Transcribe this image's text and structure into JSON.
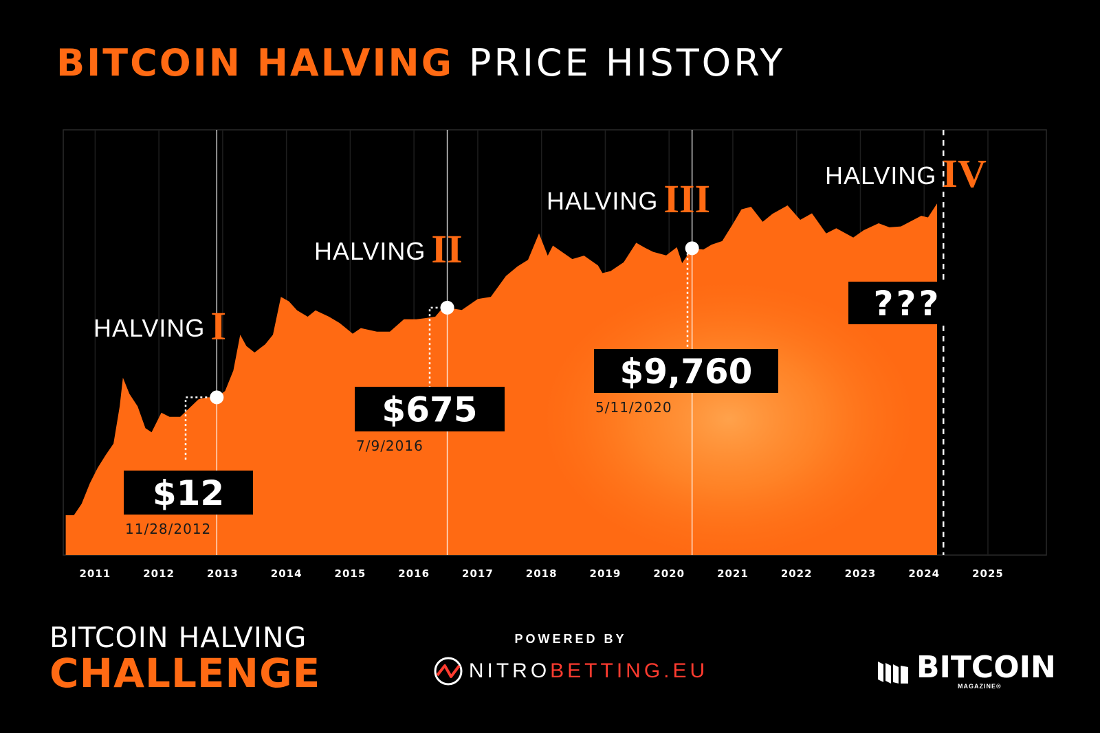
{
  "title": {
    "highlight": "BITCOIN HALVING",
    "rest": "PRICE HISTORY"
  },
  "colors": {
    "background": "#000000",
    "accent": "#ff6a13",
    "area_light": "#ff8a2a",
    "text": "#ffffff"
  },
  "chart_data": {
    "type": "area",
    "title": "BITCOIN HALVING PRICE HISTORY",
    "x_tick_labels": [
      "2011",
      "2012",
      "2013",
      "2014",
      "2015",
      "2016",
      "2017",
      "2018",
      "2019",
      "2020",
      "2021",
      "2022",
      "2023",
      "2024",
      "2025"
    ],
    "xlim": [
      "2010-07",
      "2025-12"
    ],
    "y_scale": "log",
    "grid": "vertical",
    "series": [
      {
        "points": [
          [
            "2010-07-15",
            0.06
          ],
          [
            "2010-09-01",
            0.06
          ],
          [
            "2010-10-15",
            0.1
          ],
          [
            "2010-12-01",
            0.25
          ],
          [
            "2011-01-15",
            0.5
          ],
          [
            "2011-03-01",
            0.9
          ],
          [
            "2011-04-15",
            1.5
          ],
          [
            "2011-05-20",
            8
          ],
          [
            "2011-06-08",
            29
          ],
          [
            "2011-07-15",
            14
          ],
          [
            "2011-09-01",
            8
          ],
          [
            "2011-10-15",
            3
          ],
          [
            "2011-11-20",
            2.5
          ],
          [
            "2012-01-15",
            6
          ],
          [
            "2012-03-01",
            5
          ],
          [
            "2012-05-01",
            5
          ],
          [
            "2012-08-15",
            11
          ],
          [
            "2012-10-01",
            12
          ],
          [
            "2012-11-28",
            12
          ],
          [
            "2013-01-15",
            16
          ],
          [
            "2013-03-01",
            40
          ],
          [
            "2013-04-10",
            200
          ],
          [
            "2013-05-15",
            120
          ],
          [
            "2013-07-01",
            90
          ],
          [
            "2013-09-01",
            130
          ],
          [
            "2013-10-15",
            200
          ],
          [
            "2013-11-30",
            1100
          ],
          [
            "2014-01-15",
            900
          ],
          [
            "2014-03-01",
            600
          ],
          [
            "2014-05-01",
            450
          ],
          [
            "2014-06-15",
            600
          ],
          [
            "2014-09-01",
            450
          ],
          [
            "2014-11-01",
            340
          ],
          [
            "2015-01-15",
            210
          ],
          [
            "2015-03-01",
            270
          ],
          [
            "2015-06-01",
            230
          ],
          [
            "2015-08-15",
            230
          ],
          [
            "2015-11-04",
            400
          ],
          [
            "2016-01-15",
            400
          ],
          [
            "2016-03-01",
            420
          ],
          [
            "2016-05-01",
            450
          ],
          [
            "2016-06-18",
            700
          ],
          [
            "2016-07-09",
            675
          ],
          [
            "2016-10-01",
            610
          ],
          [
            "2017-01-01",
            1000
          ],
          [
            "2017-03-15",
            1100
          ],
          [
            "2017-06-10",
            2800
          ],
          [
            "2017-08-15",
            4300
          ],
          [
            "2017-10-15",
            5800
          ],
          [
            "2017-12-17",
            19000
          ],
          [
            "2018-02-06",
            7000
          ],
          [
            "2018-03-05",
            11000
          ],
          [
            "2018-06-25",
            6000
          ],
          [
            "2018-09-01",
            7000
          ],
          [
            "2018-11-20",
            4500
          ],
          [
            "2018-12-15",
            3200
          ],
          [
            "2019-02-01",
            3500
          ],
          [
            "2019-04-15",
            5200
          ],
          [
            "2019-06-26",
            12500
          ],
          [
            "2019-08-15",
            10000
          ],
          [
            "2019-10-01",
            8300
          ],
          [
            "2019-12-15",
            7100
          ],
          [
            "2020-02-15",
            10200
          ],
          [
            "2020-03-15",
            5000
          ],
          [
            "2020-05-11",
            9760
          ],
          [
            "2020-07-15",
            9200
          ],
          [
            "2020-09-01",
            11500
          ],
          [
            "2020-11-01",
            13500
          ],
          [
            "2021-01-01",
            29000
          ],
          [
            "2021-02-20",
            56000
          ],
          [
            "2021-04-14",
            63000
          ],
          [
            "2021-06-20",
            32000
          ],
          [
            "2021-08-15",
            46000
          ],
          [
            "2021-11-10",
            67000
          ],
          [
            "2022-01-22",
            35000
          ],
          [
            "2022-03-28",
            47000
          ],
          [
            "2022-06-18",
            19000
          ],
          [
            "2022-08-15",
            24000
          ],
          [
            "2022-11-21",
            15800
          ],
          [
            "2023-01-20",
            22000
          ],
          [
            "2023-04-14",
            30000
          ],
          [
            "2023-06-15",
            25000
          ],
          [
            "2023-08-20",
            26000
          ],
          [
            "2023-10-24",
            34000
          ],
          [
            "2023-12-15",
            42000
          ],
          [
            "2024-01-23",
            39000
          ],
          [
            "2024-03-14",
            73000
          ]
        ]
      }
    ],
    "halvings": [
      {
        "label": "HALVING",
        "numeral": "I",
        "date": "11/28/2012",
        "price": "$12",
        "x": "2012-11-28",
        "y": 12
      },
      {
        "label": "HALVING",
        "numeral": "II",
        "date": "7/9/2016",
        "price": "$675",
        "x": "2016-07-09",
        "y": 675
      },
      {
        "label": "HALVING",
        "numeral": "III",
        "date": "5/11/2020",
        "price": "$9,760",
        "x": "2020-05-11",
        "y": 9760
      },
      {
        "label": "HALVING",
        "numeral": "IV",
        "price": "???",
        "x": "2024-04-20"
      }
    ]
  },
  "footer": {
    "challenge_line1": "BITCOIN HALVING",
    "challenge_line2": "CHALLENGE",
    "powered_by": "POWERED BY",
    "sponsor_nitro": "NITRO",
    "sponsor_betting": "BETTING.EU",
    "brand": "BITCOIN",
    "brand_sub": "MAGAZINE®"
  }
}
